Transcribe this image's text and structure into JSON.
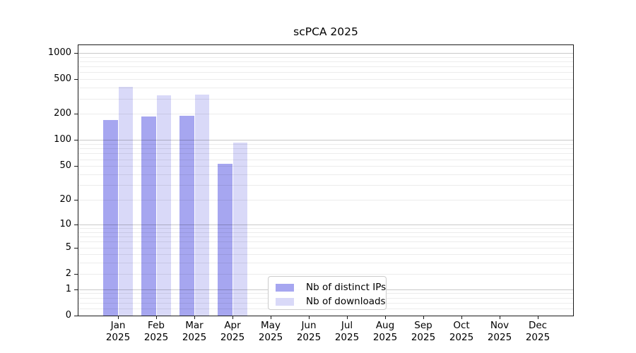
{
  "chart_data": {
    "type": "bar",
    "title": "scPCA 2025",
    "categories": [
      {
        "month": "Jan",
        "year": "2025"
      },
      {
        "month": "Feb",
        "year": "2025"
      },
      {
        "month": "Mar",
        "year": "2025"
      },
      {
        "month": "Apr",
        "year": "2025"
      },
      {
        "month": "May",
        "year": "2025"
      },
      {
        "month": "Jun",
        "year": "2025"
      },
      {
        "month": "Jul",
        "year": "2025"
      },
      {
        "month": "Aug",
        "year": "2025"
      },
      {
        "month": "Sep",
        "year": "2025"
      },
      {
        "month": "Oct",
        "year": "2025"
      },
      {
        "month": "Nov",
        "year": "2025"
      },
      {
        "month": "Dec",
        "year": "2025"
      }
    ],
    "series": [
      {
        "name": "Nb of distinct IPs",
        "key": "distinct-ips",
        "color": "#a6a6f0",
        "values": [
          170,
          188,
          192,
          53,
          0,
          0,
          0,
          0,
          0,
          0,
          0,
          0
        ]
      },
      {
        "name": "Nb of downloads",
        "key": "downloads",
        "color": "#d9d9f8",
        "values": [
          410,
          325,
          332,
          93,
          0,
          0,
          0,
          0,
          0,
          0,
          0,
          0
        ]
      }
    ],
    "yscale": "log1p",
    "ylim": [
      0,
      1226
    ],
    "yticks": [
      {
        "value": 0,
        "label": "0"
      },
      {
        "value": 1,
        "label": "1"
      },
      {
        "value": 2,
        "label": "2"
      },
      {
        "value": 5,
        "label": "5"
      },
      {
        "value": 10,
        "label": "10"
      },
      {
        "value": 20,
        "label": "20"
      },
      {
        "value": 50,
        "label": "50"
      },
      {
        "value": 100,
        "label": "100"
      },
      {
        "value": 200,
        "label": "200"
      },
      {
        "value": 500,
        "label": "500"
      },
      {
        "value": 1000,
        "label": "1000"
      }
    ],
    "grid": {
      "major_values": [
        1,
        10,
        100,
        1000
      ],
      "minor_values": [
        0.2,
        0.4,
        0.6,
        0.8,
        2,
        3,
        4,
        5,
        6,
        7,
        8,
        9,
        20,
        30,
        40,
        50,
        60,
        70,
        80,
        90,
        200,
        300,
        400,
        500,
        600,
        700,
        800,
        900
      ]
    },
    "legend": {
      "position": "lower-center-inside"
    }
  }
}
